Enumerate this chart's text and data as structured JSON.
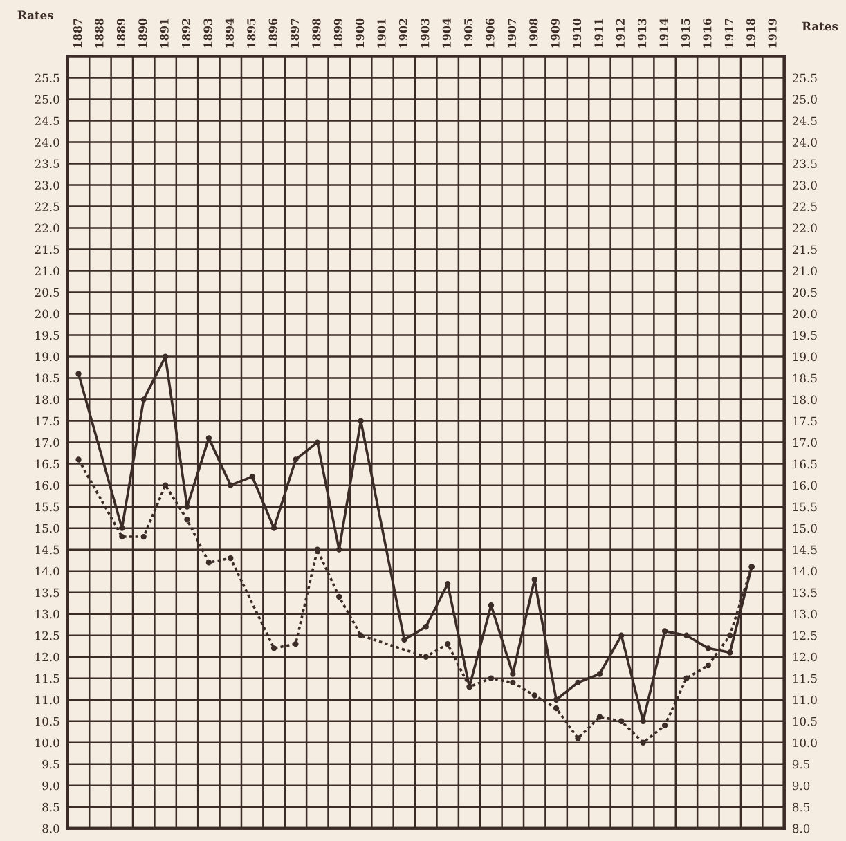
{
  "chart_data": {
    "type": "line",
    "ylabel": "Rates",
    "y2label": "Rates",
    "categories": [
      "1887",
      "1888",
      "1889",
      "1890",
      "1891",
      "1892",
      "1893",
      "1894",
      "1895",
      "1896",
      "1897",
      "1898",
      "1899",
      "1900",
      "1901",
      "1902",
      "1903",
      "1904",
      "1905",
      "1906",
      "1907",
      "1908",
      "1909",
      "1910",
      "1911",
      "1912",
      "1913",
      "1914",
      "1915",
      "1916",
      "1917",
      "1918",
      "1919"
    ],
    "series": [
      {
        "color": "#3b2c27",
        "line_style": "solid",
        "values": [
          18.6,
          null,
          15.0,
          18.0,
          19.0,
          15.5,
          17.1,
          16.0,
          16.2,
          15.0,
          16.6,
          17.0,
          14.5,
          17.5,
          null,
          12.4,
          12.7,
          13.7,
          11.3,
          13.2,
          11.6,
          13.8,
          11.0,
          11.4,
          11.6,
          12.5,
          10.5,
          12.6,
          12.5,
          12.2,
          12.1,
          14.1,
          null
        ]
      },
      {
        "color": "#3b2c27",
        "line_style": "dotted",
        "values": [
          16.6,
          null,
          14.8,
          14.8,
          16.0,
          15.2,
          14.2,
          14.3,
          null,
          12.2,
          12.3,
          14.5,
          13.4,
          12.5,
          null,
          null,
          12.0,
          12.3,
          11.3,
          11.5,
          11.4,
          11.1,
          10.8,
          10.1,
          10.6,
          10.5,
          10.0,
          10.4,
          11.5,
          11.8,
          12.5,
          14.1,
          null
        ]
      }
    ],
    "marker": "circle",
    "grid": true,
    "ylim": [
      8,
      26
    ],
    "y2lim": [
      8,
      26
    ],
    "yticks": [
      {
        "value": 8,
        "label": "8.0"
      },
      8.5,
      {
        "value": 9,
        "label": "9.0"
      },
      9.5,
      {
        "value": 10,
        "label": "10.0"
      },
      10.5,
      {
        "value": 11,
        "label": "11.0"
      },
      11.5,
      {
        "value": 12,
        "label": "12.0"
      },
      12.5,
      {
        "value": 13,
        "label": "13.0"
      },
      13.5,
      {
        "value": 14,
        "label": "14.0"
      },
      14.5,
      {
        "value": 15,
        "label": "15.0"
      },
      15.5,
      {
        "value": 16,
        "label": "16.0"
      },
      16.5,
      {
        "value": 17,
        "label": "17.0"
      },
      17.5,
      {
        "value": 18,
        "label": "18.0"
      },
      18.5,
      {
        "value": 19,
        "label": "19.0"
      },
      19.5,
      {
        "value": 20,
        "label": "20.0"
      },
      20.5,
      {
        "value": 21,
        "label": "21.0"
      },
      21.5,
      {
        "value": 22,
        "label": "22.0"
      },
      22.5,
      {
        "value": 23,
        "label": "23.0"
      },
      23.5,
      {
        "value": 24,
        "label": "24.0"
      },
      24.5,
      {
        "value": 25,
        "label": "25.0"
      },
      25.5
    ],
    "y2ticks": [
      {
        "value": 8,
        "label": "8.0"
      },
      8.5,
      {
        "value": 9,
        "label": "9.0"
      },
      9.5,
      {
        "value": 10,
        "label": "10.0"
      },
      10.5,
      {
        "value": 11,
        "label": "11.0"
      },
      11.5,
      {
        "value": 12,
        "label": "12.0"
      },
      12.5,
      {
        "value": 13,
        "label": "13.0"
      },
      13.5,
      {
        "value": 14,
        "label": "14.0"
      },
      14.5,
      {
        "value": 15,
        "label": "15.0"
      },
      15.5,
      {
        "value": 16,
        "label": "16.0"
      },
      16.5,
      {
        "value": 17,
        "label": "17.0"
      },
      17.5,
      {
        "value": 18,
        "label": "18.0"
      },
      18.5,
      {
        "value": 19,
        "label": "19.0"
      },
      19.5,
      {
        "value": 20,
        "label": "20.0"
      },
      20.5,
      {
        "value": 21,
        "label": "21.0"
      },
      21.5,
      {
        "value": 22,
        "label": "22.0"
      },
      22.5,
      {
        "value": 23,
        "label": "23.0"
      },
      23.5,
      {
        "value": 24,
        "label": "24.0"
      },
      24.5,
      {
        "value": 25,
        "label": "25.0"
      },
      25.5
    ]
  }
}
